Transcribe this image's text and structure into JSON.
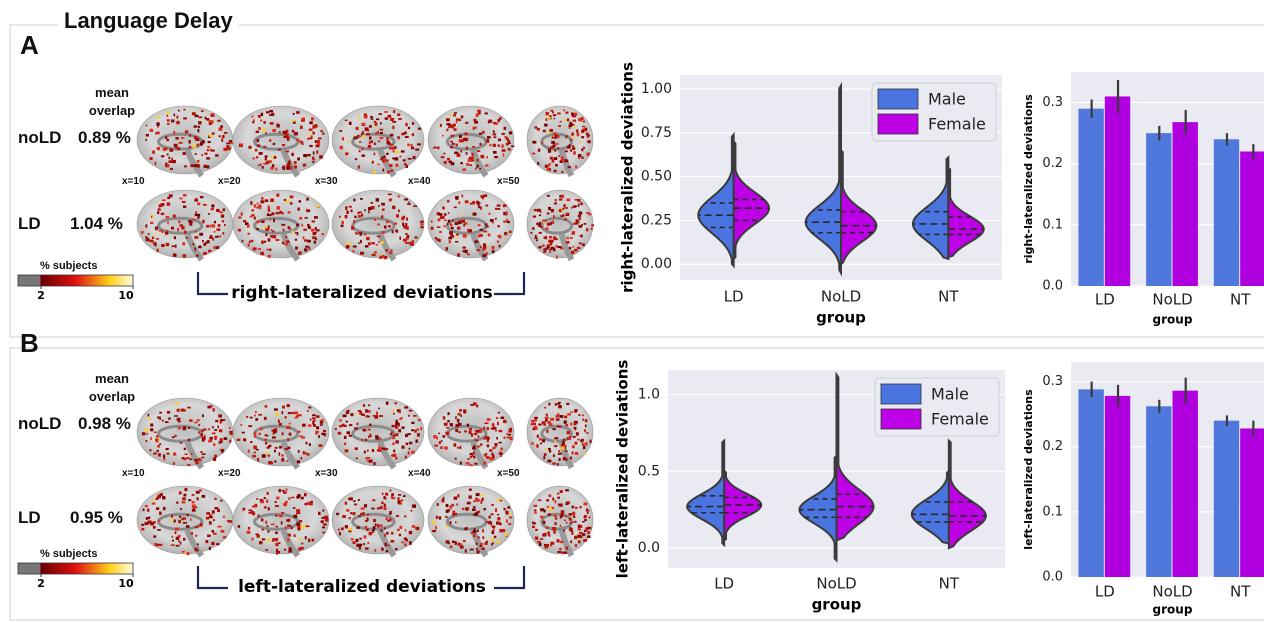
{
  "title": "Language Delay",
  "panels": [
    {
      "letter": "A",
      "overlap_header": "mean overlap",
      "rows": [
        {
          "group": "noLD",
          "overlap": "0.89 %"
        },
        {
          "group": "LD",
          "overlap": "1.04 %"
        }
      ],
      "slices": [
        "x=10",
        "x=20",
        "x=30",
        "x=40",
        "x=50"
      ],
      "colorbar": {
        "label": "% subjects",
        "lim": [
          0,
          10
        ],
        "ticks": [
          2,
          10
        ]
      },
      "bracket_label": "right-lateralized deviations"
    },
    {
      "letter": "B",
      "overlap_header": "mean overlap",
      "rows": [
        {
          "group": "noLD",
          "overlap": "0.98 %"
        },
        {
          "group": "LD",
          "overlap": "0.95 %"
        }
      ],
      "slices": [
        "x=10",
        "x=20",
        "x=30",
        "x=40",
        "x=50"
      ],
      "colorbar": {
        "label": "% subjects",
        "lim": [
          0,
          10
        ],
        "ticks": [
          2,
          10
        ]
      },
      "bracket_label": "left-lateralized deviations"
    }
  ],
  "chart_data": [
    {
      "type": "violin",
      "x_label": "group",
      "y_label": "right-lateralized deviations",
      "categories": [
        "LD",
        "NoLD",
        "NT"
      ],
      "legend": "upper right",
      "grid": true,
      "ylim": [
        -0.09,
        1.08
      ],
      "yticks": [
        {
          "value": 0,
          "label": "0.00"
        },
        0.25,
        {
          "value": 0.5,
          "label": "0.50"
        },
        0.75,
        {
          "value": 1,
          "label": "1.00"
        }
      ],
      "series": [
        {
          "name": "Male",
          "color": "#4a74e0",
          "min": [
            -0.01,
            -0.05,
            0.03
          ],
          "q1": [
            0.21,
            0.18,
            0.17
          ],
          "median": [
            0.28,
            0.24,
            0.23
          ],
          "q3": [
            0.35,
            0.31,
            0.3
          ],
          "max": [
            0.74,
            1.02,
            0.61
          ]
        },
        {
          "name": "Female",
          "color": "#be00e6",
          "min": [
            0.03,
            0.0,
            0.04
          ],
          "q1": [
            0.25,
            0.18,
            0.17
          ],
          "median": [
            0.32,
            0.22,
            0.2
          ],
          "q3": [
            0.37,
            0.3,
            0.27
          ],
          "max": [
            0.7,
            0.65,
            0.55
          ]
        }
      ]
    },
    {
      "type": "bar",
      "x_label": "group",
      "y_label": "right-lateralized deviations",
      "categories": [
        "LD",
        "NoLD",
        "NT"
      ],
      "grid": true,
      "ylim": [
        0,
        0.35
      ],
      "yticks": [
        {
          "value": 0,
          "label": "0.0"
        },
        0.1,
        0.2,
        0.3
      ],
      "series": [
        {
          "name": "Male",
          "color": "#5078dc",
          "values": [
            0.29,
            0.25,
            0.24
          ],
          "errors": [
            0.015,
            0.012,
            0.01
          ]
        },
        {
          "name": "Female",
          "color": "#b000e0",
          "values": [
            0.31,
            0.268,
            0.22
          ],
          "errors": [
            0.027,
            0.02,
            0.012
          ]
        }
      ]
    },
    {
      "type": "violin",
      "x_label": "group",
      "y_label": "left-lateralized deviations",
      "categories": [
        "LD",
        "NoLD",
        "NT"
      ],
      "legend": "upper right",
      "grid": true,
      "ylim": [
        -0.13,
        1.16
      ],
      "yticks": [
        {
          "value": 0,
          "label": "0.0"
        },
        0.5,
        {
          "value": 1,
          "label": "1.0"
        }
      ],
      "series": [
        {
          "name": "Male",
          "color": "#4a74e0",
          "min": [
            0.02,
            -0.08,
            0.03
          ],
          "q1": [
            0.23,
            0.2,
            0.17
          ],
          "median": [
            0.27,
            0.25,
            0.22
          ],
          "q3": [
            0.34,
            0.32,
            0.3
          ],
          "max": [
            0.7,
            0.6,
            0.5
          ]
        },
        {
          "name": "Female",
          "color": "#be00e6",
          "min": [
            0.05,
            0.05,
            0.0
          ],
          "q1": [
            0.23,
            0.2,
            0.17
          ],
          "median": [
            0.28,
            0.27,
            0.21
          ],
          "q3": [
            0.33,
            0.35,
            0.3
          ],
          "max": [
            0.5,
            1.13,
            0.7
          ]
        }
      ]
    },
    {
      "type": "bar",
      "x_label": "group",
      "y_label": "left-lateralized deviations",
      "categories": [
        "LD",
        "NoLD",
        "NT"
      ],
      "grid": true,
      "ylim": [
        0,
        0.33
      ],
      "yticks": [
        {
          "value": 0,
          "label": "0.0"
        },
        0.1,
        0.2,
        0.3
      ],
      "series": [
        {
          "name": "Male",
          "color": "#5078dc",
          "values": [
            0.288,
            0.262,
            0.24
          ],
          "errors": [
            0.012,
            0.01,
            0.008
          ]
        },
        {
          "name": "Female",
          "color": "#b000e0",
          "values": [
            0.278,
            0.286,
            0.228
          ],
          "errors": [
            0.017,
            0.02,
            0.012
          ]
        }
      ]
    }
  ]
}
